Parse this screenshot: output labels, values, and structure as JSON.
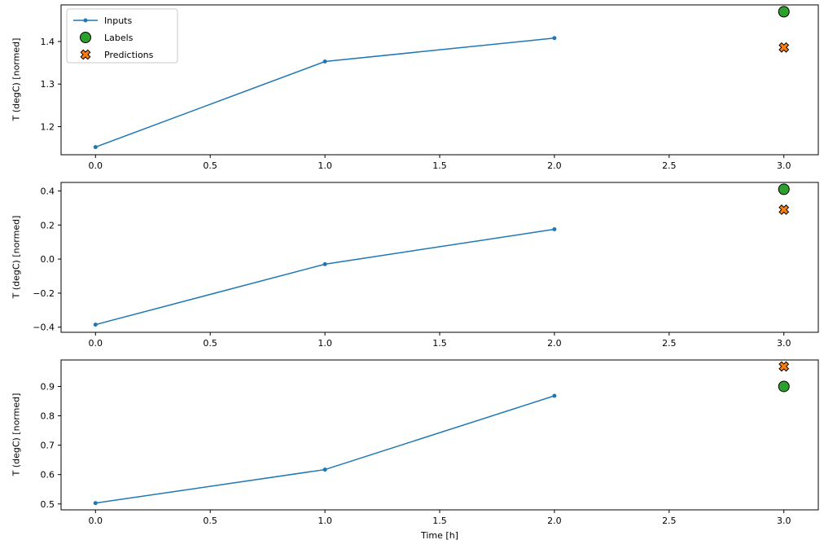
{
  "figure": {
    "xlabel": "Time [h]",
    "ylabel": "T (degC) [normed]"
  },
  "legend": {
    "position": "upper left",
    "entries": [
      {
        "label": "Inputs",
        "type": "line-dot",
        "color": "#1f77b4"
      },
      {
        "label": "Labels",
        "type": "circle",
        "color": "#2ca02c",
        "edge_color": "#000000"
      },
      {
        "label": "Predictions",
        "type": "x",
        "color": "#ff7f0e",
        "edge_color": "#000000"
      }
    ]
  },
  "chart_data": [
    {
      "type": "line",
      "title": "",
      "xlabel": "",
      "ylabel": "T (degC) [normed]",
      "xlim": [
        -0.15,
        3.15
      ],
      "ylim": [
        1.134,
        1.486
      ],
      "xticks": [
        0.0,
        0.5,
        1.0,
        1.5,
        2.0,
        2.5,
        3.0
      ],
      "xtick_labels": [
        "0.0",
        "0.5",
        "1.0",
        "1.5",
        "2.0",
        "2.5",
        "3.0"
      ],
      "yticks": [
        1.2,
        1.3,
        1.4
      ],
      "ytick_labels": [
        "1.2",
        "1.3",
        "1.4"
      ],
      "grid": false,
      "series": [
        {
          "name": "Inputs",
          "marker": "dot",
          "color": "#1f77b4",
          "x": [
            0,
            1,
            2
          ],
          "y": [
            1.152,
            1.353,
            1.408
          ]
        },
        {
          "name": "Labels",
          "marker": "circle",
          "color": "#2ca02c",
          "x": [
            3
          ],
          "y": [
            1.47
          ]
        },
        {
          "name": "Predictions",
          "marker": "x",
          "color": "#ff7f0e",
          "x": [
            3
          ],
          "y": [
            1.386
          ]
        }
      ]
    },
    {
      "type": "line",
      "title": "",
      "xlabel": "",
      "ylabel": "T (degC) [normed]",
      "xlim": [
        -0.15,
        3.15
      ],
      "ylim": [
        -0.43,
        0.45
      ],
      "xticks": [
        0.0,
        0.5,
        1.0,
        1.5,
        2.0,
        2.5,
        3.0
      ],
      "xtick_labels": [
        "0.0",
        "0.5",
        "1.0",
        "1.5",
        "2.0",
        "2.5",
        "3.0"
      ],
      "yticks": [
        -0.4,
        -0.2,
        0.0,
        0.2,
        0.4
      ],
      "ytick_labels": [
        "−0.4",
        "−0.2",
        "0.0",
        "0.2",
        "0.4"
      ],
      "grid": false,
      "series": [
        {
          "name": "Inputs",
          "marker": "dot",
          "color": "#1f77b4",
          "x": [
            0,
            1,
            2
          ],
          "y": [
            -0.385,
            -0.03,
            0.175
          ]
        },
        {
          "name": "Labels",
          "marker": "circle",
          "color": "#2ca02c",
          "x": [
            3
          ],
          "y": [
            0.41
          ]
        },
        {
          "name": "Predictions",
          "marker": "x",
          "color": "#ff7f0e",
          "x": [
            3
          ],
          "y": [
            0.29
          ]
        }
      ]
    },
    {
      "type": "line",
      "title": "",
      "xlabel": "Time [h]",
      "ylabel": "T (degC) [normed]",
      "xlim": [
        -0.15,
        3.15
      ],
      "ylim": [
        0.48,
        0.99
      ],
      "xticks": [
        0.0,
        0.5,
        1.0,
        1.5,
        2.0,
        2.5,
        3.0
      ],
      "xtick_labels": [
        "0.0",
        "0.5",
        "1.0",
        "1.5",
        "2.0",
        "2.5",
        "3.0"
      ],
      "yticks": [
        0.5,
        0.6,
        0.7,
        0.8,
        0.9
      ],
      "ytick_labels": [
        "0.5",
        "0.6",
        "0.7",
        "0.8",
        "0.9"
      ],
      "grid": false,
      "series": [
        {
          "name": "Inputs",
          "marker": "dot",
          "color": "#1f77b4",
          "x": [
            0,
            1,
            2
          ],
          "y": [
            0.503,
            0.617,
            0.868
          ]
        },
        {
          "name": "Labels",
          "marker": "circle",
          "color": "#2ca02c",
          "x": [
            3
          ],
          "y": [
            0.9
          ]
        },
        {
          "name": "Predictions",
          "marker": "x",
          "color": "#ff7f0e",
          "x": [
            3
          ],
          "y": [
            0.968
          ]
        }
      ]
    }
  ]
}
